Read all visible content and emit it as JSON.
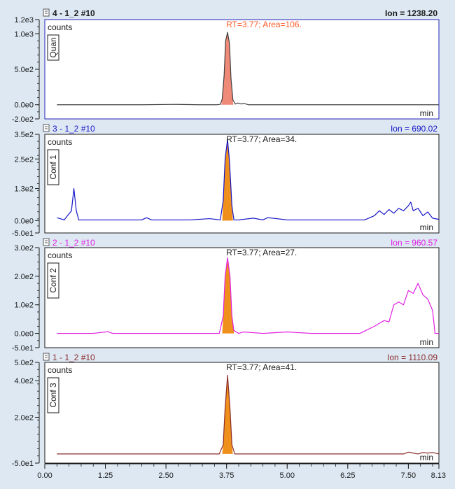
{
  "panel_names": [
    "panel-quan",
    "panel-conf-1",
    "panel-conf-2",
    "panel-conf-3"
  ],
  "chart_data": [
    {
      "type": "line",
      "header": "4 - 1_2 #10",
      "ion_label": "Ion = 1238.20",
      "header_bold": true,
      "color": "#404040",
      "header_color": "#1a1a1a",
      "peak_label_color": "#ff5a28",
      "fill_color": "#f08a78",
      "qualifier_label": "Quan",
      "ylabel": "counts",
      "xlabel": "min",
      "peak_label": "RT=3.77; Area=106.",
      "ylim": [
        -200,
        1200
      ],
      "yticks": [
        {
          "value": 1200,
          "label": "1.2e3"
        },
        {
          "value": 1000,
          "label": "1.0e3"
        },
        {
          "value": 500,
          "label": "5.0e2"
        },
        {
          "value": 0,
          "label": "0.0e0"
        },
        {
          "value": -200,
          "label": "-2.0e2"
        }
      ],
      "x": [
        0.25,
        1.0,
        2.0,
        2.7,
        3.2,
        3.55,
        3.62,
        3.66,
        3.7,
        3.73,
        3.77,
        3.81,
        3.84,
        3.88,
        3.93,
        3.98,
        4.05,
        4.1,
        4.2,
        4.5,
        5.0,
        6.0,
        7.0,
        8.13
      ],
      "y": [
        0,
        0,
        0,
        5,
        0,
        0,
        5,
        80,
        420,
        900,
        1020,
        860,
        380,
        70,
        10,
        25,
        10,
        20,
        0,
        0,
        0,
        0,
        0,
        0
      ],
      "peak_range": [
        3.64,
        3.89
      ]
    },
    {
      "type": "line",
      "header": "3 - 1_2 #10",
      "ion_label": "Ion = 690.02",
      "header_bold": false,
      "color": "#1515c8",
      "header_color": "#1515c8",
      "peak_label_color": "#1a1a1a",
      "fill_color": "#f0901c",
      "qualifier_label": "Conf 1",
      "ylabel": "counts",
      "xlabel": "min",
      "peak_label": "RT=3.77; Area=34.",
      "ylim": [
        -50,
        350
      ],
      "yticks": [
        {
          "value": 350,
          "label": "3.5e2"
        },
        {
          "value": 250,
          "label": "2.5e2"
        },
        {
          "value": 130,
          "label": "1.3e2"
        },
        {
          "value": 0,
          "label": "0.0e0"
        },
        {
          "value": -50,
          "label": "-5.0e1"
        }
      ],
      "x": [
        0.25,
        0.4,
        0.55,
        0.6,
        0.65,
        0.7,
        0.8,
        1.2,
        1.6,
        2.0,
        2.1,
        2.2,
        2.6,
        3.0,
        3.4,
        3.62,
        3.68,
        3.72,
        3.77,
        3.81,
        3.86,
        3.9,
        4.0,
        4.3,
        4.5,
        4.6,
        5.0,
        5.5,
        6.0,
        6.6,
        6.8,
        6.9,
        7.0,
        7.1,
        7.2,
        7.3,
        7.4,
        7.5,
        7.55,
        7.6,
        7.7,
        7.8,
        7.9,
        8.0,
        8.13
      ],
      "y": [
        12,
        3,
        40,
        130,
        40,
        3,
        3,
        3,
        3,
        3,
        12,
        3,
        3,
        3,
        8,
        3,
        80,
        250,
        330,
        240,
        60,
        3,
        3,
        10,
        3,
        12,
        3,
        3,
        3,
        3,
        20,
        40,
        25,
        45,
        30,
        50,
        40,
        60,
        75,
        40,
        50,
        20,
        35,
        10,
        5
      ],
      "peak_range": [
        3.66,
        3.88
      ]
    },
    {
      "type": "line",
      "header": "2 - 1_2 #10",
      "ion_label": "Ion = 960.57",
      "header_bold": false,
      "color": "#e11ee1",
      "header_color": "#e11ee1",
      "peak_label_color": "#1a1a1a",
      "fill_color": "#f0901c",
      "qualifier_label": "Conf 2",
      "ylabel": "counts",
      "xlabel": "min",
      "peak_label": "RT=3.77; Area=27.",
      "ylim": [
        -50,
        300
      ],
      "yticks": [
        {
          "value": 300,
          "label": "3.0e2"
        },
        {
          "value": 200,
          "label": "2.0e2"
        },
        {
          "value": 100,
          "label": "1.0e2"
        },
        {
          "value": 0,
          "label": "0.0e0"
        },
        {
          "value": -50,
          "label": "-5.0e1"
        }
      ],
      "x": [
        0.25,
        1.0,
        1.3,
        1.4,
        2.0,
        3.0,
        3.6,
        3.68,
        3.72,
        3.77,
        3.82,
        3.86,
        3.9,
        4.0,
        4.1,
        4.5,
        5.0,
        5.5,
        6.0,
        6.5,
        6.8,
        6.9,
        7.0,
        7.1,
        7.2,
        7.3,
        7.4,
        7.5,
        7.6,
        7.7,
        7.8,
        7.9,
        8.0,
        8.05,
        8.13
      ],
      "y": [
        0,
        0,
        6,
        0,
        0,
        0,
        0,
        60,
        200,
        265,
        200,
        60,
        10,
        0,
        5,
        0,
        5,
        0,
        0,
        0,
        25,
        35,
        45,
        40,
        100,
        110,
        100,
        150,
        140,
        175,
        135,
        120,
        80,
        0,
        0
      ],
      "peak_range": [
        3.66,
        3.9
      ]
    },
    {
      "type": "line",
      "header": "1 - 1_2 #10",
      "ion_label": "Ion = 1110.09",
      "header_bold": false,
      "color": "#8b2b2b",
      "header_color": "#8b2b2b",
      "peak_label_color": "#1a1a1a",
      "fill_color": "#f0901c",
      "qualifier_label": "Conf 3",
      "ylabel": "counts",
      "xlabel": "min",
      "peak_label": "RT=3.77; Area=41.",
      "ylim": [
        -50,
        500
      ],
      "yticks": [
        {
          "value": 500,
          "label": "5.0e2"
        },
        {
          "value": 400,
          "label": "4.0e2"
        },
        {
          "value": 200,
          "label": "2.0e2"
        },
        {
          "value": -50,
          "label": "-5.0e1"
        }
      ],
      "x": [
        0.25,
        1.0,
        2.0,
        3.0,
        3.6,
        3.68,
        3.72,
        3.77,
        3.82,
        3.86,
        3.92,
        4.5,
        5.0,
        6.0,
        7.0,
        7.4,
        7.5,
        7.6,
        7.7,
        7.8,
        7.9,
        8.0,
        8.13
      ],
      "y": [
        0,
        0,
        0,
        0,
        0,
        50,
        250,
        430,
        250,
        50,
        0,
        0,
        0,
        0,
        0,
        0,
        10,
        5,
        0,
        8,
        5,
        8,
        0
      ],
      "peak_range": [
        3.66,
        3.88
      ]
    }
  ],
  "x_axis": {
    "xlim": [
      0,
      8.13
    ],
    "ticks": [
      {
        "value": 0,
        "label": "0.00"
      },
      {
        "value": 1.25,
        "label": "1.25"
      },
      {
        "value": 2.5,
        "label": "2.50"
      },
      {
        "value": 3.75,
        "label": "3.75"
      },
      {
        "value": 5.0,
        "label": "5.00"
      },
      {
        "value": 6.25,
        "label": "6.25"
      },
      {
        "value": 7.5,
        "label": "7.50"
      },
      {
        "value": 8.13,
        "label": "8.13"
      }
    ]
  },
  "colors": {
    "frame_bg": "#dde8f3",
    "panel_border_active": "#2323b4",
    "panel_border": "#1a1a1a",
    "axis": "#1a1a1a"
  }
}
